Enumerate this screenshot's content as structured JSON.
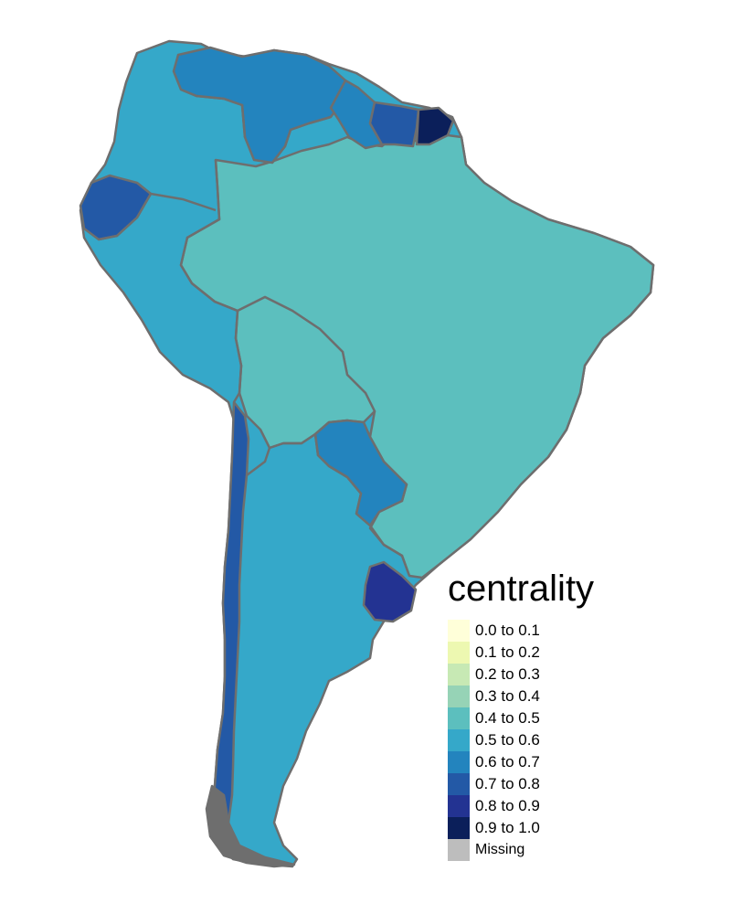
{
  "legend": {
    "title": "centrality",
    "items": [
      {
        "label": "0.0 to 0.1",
        "color": "#ffffd9"
      },
      {
        "label": "0.1 to 0.2",
        "color": "#edf8b1"
      },
      {
        "label": "0.2 to 0.3",
        "color": "#c7e9b4"
      },
      {
        "label": "0.3 to 0.4",
        "color": "#96d3b6"
      },
      {
        "label": "0.4 to 0.5",
        "color": "#5cbfbe"
      },
      {
        "label": "0.5 to 0.6",
        "color": "#35a8c9"
      },
      {
        "label": "0.6 to 0.7",
        "color": "#2384be"
      },
      {
        "label": "0.7 to 0.8",
        "color": "#2359a6"
      },
      {
        "label": "0.8 to 0.9",
        "color": "#233392"
      },
      {
        "label": "0.9 to 1.0",
        "color": "#0b1f5a"
      }
    ],
    "missing": {
      "label": "Missing",
      "color": "#bdbdbd"
    }
  },
  "colors": {
    "border": "#6e6e6e",
    "continent_base": "#35a8c9",
    "brazil": "#5cbfbe",
    "bolivia": "#5cbfbe",
    "venezuela": "#2384be",
    "guyana": "#2384be",
    "suriname": "#2359a6",
    "french_guiana": "#0b1f5a",
    "paraguay": "#2384be",
    "uruguay": "#233392",
    "ecuador": "#2359a6",
    "chile_strip": "#2359a6",
    "tierra_del_fuego": "#6e6e6e"
  }
}
